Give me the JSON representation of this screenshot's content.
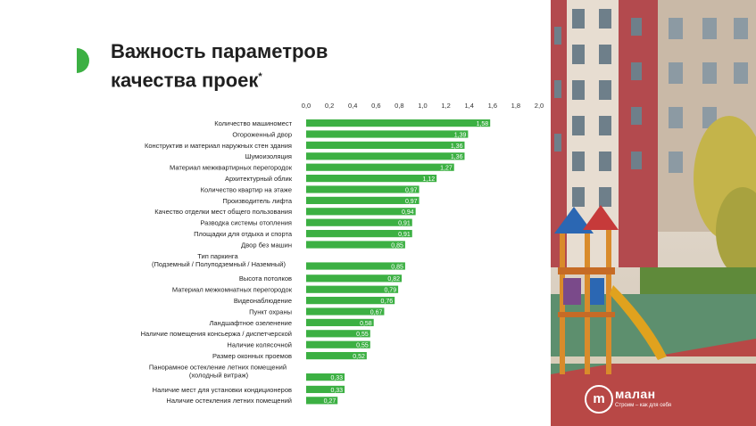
{
  "title": {
    "line1": "Важность параметров",
    "line2": "качества проек",
    "mark": "*"
  },
  "logo": {
    "name": "малан",
    "tagline": "Строим – как для себя"
  },
  "colors": {
    "bar": "#3cb043",
    "accent": "#3cb043",
    "brick": "#b34a4e"
  },
  "chart_data": {
    "type": "bar",
    "orientation": "horizontal",
    "xlim": [
      0,
      2.0
    ],
    "ticks": [
      "0,0",
      "0,2",
      "0,4",
      "0,6",
      "0,8",
      "1,0",
      "1,2",
      "1,4",
      "1,6",
      "1,8",
      "2,0"
    ],
    "categories": [
      "Количество машиномест",
      "Огороженный двор",
      "Конструктив и материал наружных стен здания",
      "Шумоизоляция",
      "Материал межквартирных перегородок",
      "Архитектурный облик",
      "Количество квартир на этаже",
      "Производитель лифта",
      "Качество отделки мест общего пользования",
      "Разводка системы отопления",
      "Площадки для отдыха и спорта",
      "Двор без машин",
      "Тип паркинга (Подземный / Полуподземный / Наземный)",
      "Высота потолков",
      "Материал межкомнатных перегородок",
      "Видеонаблюдение",
      "Пункт охраны",
      "Ландшафтное озеленение",
      "Наличие помещения консьержа / диспетчерской",
      "Наличие колясочной",
      "Размер оконных проемов",
      "Панорамное остекление летних помещений (холодный витраж)",
      "Наличие мест для установки кондиционеров",
      "Наличие остекления летних помещений"
    ],
    "values": [
      1.58,
      1.39,
      1.36,
      1.36,
      1.27,
      1.12,
      0.97,
      0.97,
      0.94,
      0.91,
      0.91,
      0.85,
      0.85,
      0.82,
      0.79,
      0.76,
      0.67,
      0.58,
      0.55,
      0.55,
      0.52,
      0.33,
      0.33,
      0.27
    ],
    "value_labels": [
      "1,58",
      "1,39",
      "1,36",
      "1,36",
      "1,27",
      "1,12",
      "0,97",
      "0,97",
      "0,94",
      "0,91",
      "0,91",
      "0,85",
      "0,85",
      "0,82",
      "0,79",
      "0,76",
      "0,67",
      "0,58",
      "0,55",
      "0,55",
      "0,52",
      "0,33",
      "0,33",
      "0,27"
    ]
  }
}
